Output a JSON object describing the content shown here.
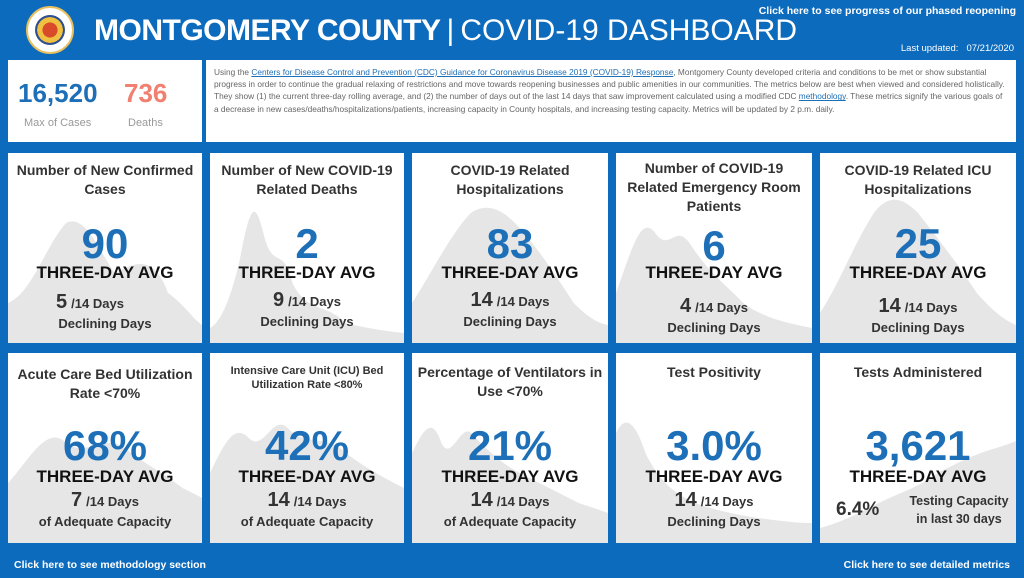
{
  "header": {
    "title_bold": "MONTGOMERY COUNTY",
    "title_sep": "|",
    "title_rest": "COVID-19 DASHBOARD",
    "phased_link": "Click here to see progress of our phased reopening",
    "updated_label": "Last updated:",
    "updated_date": "07/21/2020"
  },
  "summary": {
    "cases_value": "16,520",
    "cases_label": "Max of Cases",
    "deaths_value": "736",
    "deaths_label": "Deaths"
  },
  "intro": {
    "pre": "Using the ",
    "link1": "Centers for Disease Control and Prevention (CDC) Guidance for Coronavirus Disease 2019 (COVID-19) Response",
    "mid": ", Montgomery County developed criteria and conditions to be met or show substantial progress in order to continue the gradual relaxing of restrictions and move towards reopening businesses and public amenities in our communities. The metrics below are best when viewed and considered holistically. They show (1) the current three-day rolling average, and (2) the number of days out of the last 14 days that saw improvement calculated using a modified CDC ",
    "link2": "methodology",
    "post": ". These metrics signify the various goals of a decrease in new cases/deaths/hospitalizations/patients, increasing capacity in County hospitals, and increasing testing capacity. Metrics will be updated by 2 p.m. daily."
  },
  "cards": [
    {
      "title_a": "Number of New Confirmed ",
      "title_b": "Cases",
      "value": "90",
      "avg": "THREE-DAY AVG",
      "days": "5",
      "days_suffix": "/14 Days",
      "sub": "Declining Days"
    },
    {
      "title": "Number of New COVID-19 Related Deaths",
      "value": "2",
      "avg": "THREE-DAY AVG",
      "days": "9",
      "days_suffix": "/14 Days",
      "sub": "Declining Days"
    },
    {
      "title": "COVID-19 Related Hospitalizations",
      "value": "83",
      "avg": "THREE-DAY AVG",
      "days": "14",
      "days_suffix": "/14 Days",
      "sub": "Declining Days"
    },
    {
      "title": "Number of COVID-19 Related Emergency Room Patients",
      "value": "6",
      "avg": "THREE-DAY AVG",
      "days": "4",
      "days_suffix": "/14 Days",
      "sub": "Declining Days"
    },
    {
      "title": "COVID-19 Related ICU Hospitalizations",
      "value": "25",
      "avg": "THREE-DAY AVG",
      "days": "14",
      "days_suffix": "/14 Days",
      "sub": "Declining Days"
    },
    {
      "title": "Acute Care Bed Utilization Rate <70%",
      "value": "68%",
      "avg": "THREE-DAY AVG",
      "days": "7",
      "days_suffix": "/14 Days",
      "sub": "of Adequate Capacity"
    },
    {
      "title": "Intensive Care Unit (ICU) Bed Utilization Rate <80%",
      "value": "42%",
      "avg": "THREE-DAY AVG",
      "days": "14",
      "days_suffix": "/14 Days",
      "sub": "of Adequate Capacity"
    },
    {
      "title": "Percentage of  Ventilators in Use <70%",
      "value": "21%",
      "avg": "THREE-DAY AVG",
      "days": "14",
      "days_suffix": "/14 Days",
      "sub": "of Adequate Capacity"
    },
    {
      "title": "Test Positivity",
      "value": "3.0%",
      "avg": "THREE-DAY AVG",
      "days": "14",
      "days_suffix": "/14 Days",
      "sub": "Declining Days"
    },
    {
      "title": "Tests Administered",
      "value": "3,621",
      "avg": "THREE-DAY AVG",
      "pct": "6.4%",
      "tc_line1": "Testing Capacity",
      "tc_line2": "in last 30 days"
    }
  ],
  "footer": {
    "methodology_link": "Click here to see methodology section",
    "metrics_link": "Click here to see detailed metrics"
  },
  "colors": {
    "background": "#0d6bbd",
    "value_blue": "#1d6fb8",
    "deaths_red": "#f08070",
    "sparkline_gray": "#e6e6e6"
  }
}
